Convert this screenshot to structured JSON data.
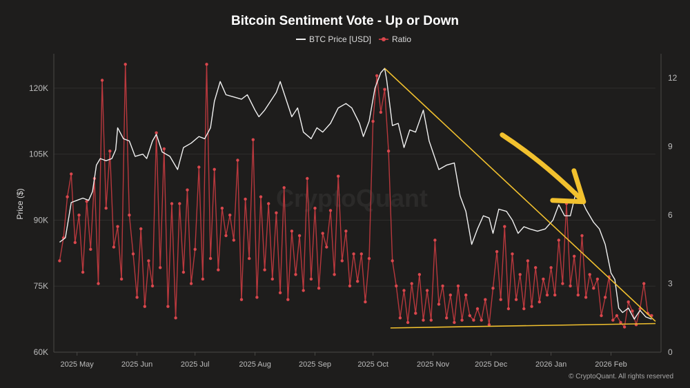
{
  "title": "Bitcoin Sentiment Vote - Up or Down",
  "credit": "© CryptoQuant. All rights reserved",
  "watermark": "CryptoQuant",
  "colors": {
    "background": "#1e1d1c",
    "price_line": "#f2f2f2",
    "ratio_line": "#b8383d",
    "ratio_marker": "#d9474d",
    "trendline": "#f2c12e",
    "grid": "#2f2e2c",
    "axis_text": "#bdbdbd"
  },
  "chart_data": {
    "type": "line",
    "title": "Bitcoin Sentiment Vote - Up or Down",
    "legend": {
      "placement": "top-center",
      "entries": [
        "BTC Price [USD]",
        "Ratio"
      ]
    },
    "grid": true,
    "x": {
      "type": "date",
      "range": [
        "2025-04-19",
        "2026-02-24"
      ],
      "tick_labels": [
        "2025 May",
        "2025 Jun",
        "2025 Jul",
        "2025 Aug",
        "2025 Sep",
        "2025 Oct",
        "2025 Nov",
        "2025 Dec",
        "2026 Jan",
        "2026 Feb"
      ],
      "tick_dates": [
        "2025-05-01",
        "2025-06-01",
        "2025-07-01",
        "2025-08-01",
        "2025-09-01",
        "2025-10-01",
        "2025-11-01",
        "2025-12-01",
        "2026-01-01",
        "2026-02-01"
      ]
    },
    "y_left": {
      "label": "Price ($)",
      "range": [
        60000,
        127500
      ],
      "ticks": [
        60000,
        75000,
        90000,
        105000,
        120000
      ],
      "tick_labels": [
        "60K",
        "75K",
        "90K",
        "105K",
        "120K"
      ]
    },
    "y_right": {
      "label": "",
      "range": [
        0,
        13
      ],
      "ticks": [
        0,
        3,
        6,
        9,
        12
      ],
      "tick_labels": [
        "0",
        "3",
        "6",
        "9",
        "12"
      ]
    },
    "series": [
      {
        "name": "BTC Price [USD]",
        "axis": "left",
        "points": [
          [
            "2025-04-22",
            85000
          ],
          [
            "2025-04-25",
            86000
          ],
          [
            "2025-04-28",
            94000
          ],
          [
            "2025-05-01",
            94500
          ],
          [
            "2025-05-04",
            95000
          ],
          [
            "2025-05-07",
            94500
          ],
          [
            "2025-05-09",
            96500
          ],
          [
            "2025-05-11",
            102500
          ],
          [
            "2025-05-13",
            104000
          ],
          [
            "2025-05-16",
            103500
          ],
          [
            "2025-05-19",
            104000
          ],
          [
            "2025-05-21",
            106000
          ],
          [
            "2025-05-22",
            111000
          ],
          [
            "2025-05-25",
            108500
          ],
          [
            "2025-05-28",
            108000
          ],
          [
            "2025-05-31",
            104500
          ],
          [
            "2025-06-04",
            105000
          ],
          [
            "2025-06-06",
            104000
          ],
          [
            "2025-06-09",
            108000
          ],
          [
            "2025-06-11",
            109500
          ],
          [
            "2025-06-14",
            105500
          ],
          [
            "2025-06-18",
            104500
          ],
          [
            "2025-06-22",
            101500
          ],
          [
            "2025-06-25",
            106500
          ],
          [
            "2025-06-29",
            107500
          ],
          [
            "2025-07-03",
            109000
          ],
          [
            "2025-07-06",
            108500
          ],
          [
            "2025-07-09",
            111000
          ],
          [
            "2025-07-11",
            117000
          ],
          [
            "2025-07-14",
            121500
          ],
          [
            "2025-07-17",
            118500
          ],
          [
            "2025-07-21",
            118000
          ],
          [
            "2025-07-25",
            117500
          ],
          [
            "2025-07-28",
            118500
          ],
          [
            "2025-08-01",
            115000
          ],
          [
            "2025-08-03",
            113500
          ],
          [
            "2025-08-06",
            115000
          ],
          [
            "2025-08-09",
            117000
          ],
          [
            "2025-08-12",
            119000
          ],
          [
            "2025-08-14",
            121500
          ],
          [
            "2025-08-17",
            117500
          ],
          [
            "2025-08-20",
            113500
          ],
          [
            "2025-08-23",
            115500
          ],
          [
            "2025-08-26",
            110000
          ],
          [
            "2025-08-30",
            108500
          ],
          [
            "2025-09-02",
            111000
          ],
          [
            "2025-09-05",
            110000
          ],
          [
            "2025-09-09",
            112000
          ],
          [
            "2025-09-13",
            115500
          ],
          [
            "2025-09-17",
            116500
          ],
          [
            "2025-09-20",
            115500
          ],
          [
            "2025-09-24",
            112000
          ],
          [
            "2025-09-26",
            109000
          ],
          [
            "2025-09-29",
            112500
          ],
          [
            "2025-10-02",
            120000
          ],
          [
            "2025-10-05",
            123500
          ],
          [
            "2025-10-07",
            124500
          ],
          [
            "2025-10-08",
            122000
          ],
          [
            "2025-10-11",
            111500
          ],
          [
            "2025-10-14",
            112000
          ],
          [
            "2025-10-17",
            106500
          ],
          [
            "2025-10-20",
            110500
          ],
          [
            "2025-10-23",
            110000
          ],
          [
            "2025-10-27",
            115000
          ],
          [
            "2025-10-30",
            108000
          ],
          [
            "2025-11-04",
            101500
          ],
          [
            "2025-11-08",
            102500
          ],
          [
            "2025-11-12",
            103000
          ],
          [
            "2025-11-15",
            95500
          ],
          [
            "2025-11-18",
            92000
          ],
          [
            "2025-11-21",
            84500
          ],
          [
            "2025-11-24",
            88000
          ],
          [
            "2025-11-27",
            91000
          ],
          [
            "2025-11-30",
            90500
          ],
          [
            "2025-12-02",
            87000
          ],
          [
            "2025-12-05",
            92500
          ],
          [
            "2025-12-09",
            92000
          ],
          [
            "2025-12-12",
            90000
          ],
          [
            "2025-12-15",
            87000
          ],
          [
            "2025-12-18",
            88500
          ],
          [
            "2025-12-21",
            88000
          ],
          [
            "2025-12-25",
            87500
          ],
          [
            "2025-12-29",
            88000
          ],
          [
            "2026-01-02",
            90000
          ],
          [
            "2026-01-05",
            93500
          ],
          [
            "2026-01-08",
            91000
          ],
          [
            "2026-01-11",
            91000
          ],
          [
            "2026-01-14",
            96500
          ],
          [
            "2026-01-16",
            95500
          ],
          [
            "2026-01-19",
            92500
          ],
          [
            "2026-01-23",
            89500
          ],
          [
            "2026-01-26",
            88000
          ],
          [
            "2026-01-29",
            84500
          ],
          [
            "2026-02-01",
            78000
          ],
          [
            "2026-02-03",
            76500
          ],
          [
            "2026-02-05",
            70000
          ],
          [
            "2026-02-07",
            69000
          ],
          [
            "2026-02-10",
            70000
          ],
          [
            "2026-02-13",
            67500
          ],
          [
            "2026-02-16",
            69500
          ],
          [
            "2026-02-19",
            68000
          ],
          [
            "2026-02-22",
            67500
          ]
        ]
      },
      {
        "name": "Ratio",
        "axis": "right",
        "points": [
          [
            "2025-04-22",
            4.0
          ],
          [
            "2025-04-24",
            5.0
          ],
          [
            "2025-04-26",
            6.8
          ],
          [
            "2025-04-28",
            7.8
          ],
          [
            "2025-04-30",
            4.8
          ],
          [
            "2025-05-02",
            6.0
          ],
          [
            "2025-05-04",
            3.5
          ],
          [
            "2025-05-06",
            6.6
          ],
          [
            "2025-05-08",
            4.5
          ],
          [
            "2025-05-10",
            7.6
          ],
          [
            "2025-05-12",
            3.0
          ],
          [
            "2025-05-14",
            11.9
          ],
          [
            "2025-05-16",
            6.3
          ],
          [
            "2025-05-18",
            8.8
          ],
          [
            "2025-05-20",
            4.6
          ],
          [
            "2025-05-22",
            5.5
          ],
          [
            "2025-05-24",
            3.2
          ],
          [
            "2025-05-26",
            12.6
          ],
          [
            "2025-05-28",
            6.0
          ],
          [
            "2025-05-30",
            4.3
          ],
          [
            "2025-06-01",
            2.4
          ],
          [
            "2025-06-03",
            5.4
          ],
          [
            "2025-06-05",
            2.0
          ],
          [
            "2025-06-07",
            4.0
          ],
          [
            "2025-06-09",
            2.9
          ],
          [
            "2025-06-11",
            9.6
          ],
          [
            "2025-06-13",
            3.7
          ],
          [
            "2025-06-15",
            8.9
          ],
          [
            "2025-06-17",
            2.0
          ],
          [
            "2025-06-19",
            6.5
          ],
          [
            "2025-06-21",
            1.5
          ],
          [
            "2025-06-23",
            6.5
          ],
          [
            "2025-06-25",
            3.5
          ],
          [
            "2025-06-27",
            7.1
          ],
          [
            "2025-06-29",
            3.0
          ],
          [
            "2025-07-01",
            4.5
          ],
          [
            "2025-07-03",
            8.1
          ],
          [
            "2025-07-05",
            3.2
          ],
          [
            "2025-07-07",
            12.6
          ],
          [
            "2025-07-09",
            4.1
          ],
          [
            "2025-07-11",
            8.0
          ],
          [
            "2025-07-13",
            3.6
          ],
          [
            "2025-07-15",
            6.3
          ],
          [
            "2025-07-17",
            5.1
          ],
          [
            "2025-07-19",
            6.0
          ],
          [
            "2025-07-21",
            4.9
          ],
          [
            "2025-07-23",
            8.4
          ],
          [
            "2025-07-25",
            2.3
          ],
          [
            "2025-07-27",
            6.7
          ],
          [
            "2025-07-29",
            4.1
          ],
          [
            "2025-07-31",
            9.3
          ],
          [
            "2025-08-02",
            2.4
          ],
          [
            "2025-08-04",
            6.8
          ],
          [
            "2025-08-06",
            3.6
          ],
          [
            "2025-08-08",
            6.5
          ],
          [
            "2025-08-10",
            3.2
          ],
          [
            "2025-08-12",
            6.1
          ],
          [
            "2025-08-14",
            2.6
          ],
          [
            "2025-08-16",
            7.2
          ],
          [
            "2025-08-18",
            2.3
          ],
          [
            "2025-08-20",
            5.3
          ],
          [
            "2025-08-22",
            3.4
          ],
          [
            "2025-08-24",
            5.1
          ],
          [
            "2025-08-26",
            2.7
          ],
          [
            "2025-08-28",
            7.6
          ],
          [
            "2025-08-30",
            3.2
          ],
          [
            "2025-09-01",
            6.3
          ],
          [
            "2025-09-03",
            2.8
          ],
          [
            "2025-09-05",
            5.2
          ],
          [
            "2025-09-07",
            4.6
          ],
          [
            "2025-09-09",
            6.2
          ],
          [
            "2025-09-11",
            3.4
          ],
          [
            "2025-09-13",
            7.7
          ],
          [
            "2025-09-15",
            4.0
          ],
          [
            "2025-09-17",
            5.3
          ],
          [
            "2025-09-19",
            2.9
          ],
          [
            "2025-09-21",
            4.3
          ],
          [
            "2025-09-23",
            3.1
          ],
          [
            "2025-09-25",
            4.3
          ],
          [
            "2025-09-27",
            2.2
          ],
          [
            "2025-09-29",
            4.1
          ],
          [
            "2025-10-01",
            10.1
          ],
          [
            "2025-10-03",
            12.1
          ],
          [
            "2025-10-05",
            10.5
          ],
          [
            "2025-10-07",
            11.5
          ],
          [
            "2025-10-09",
            8.8
          ],
          [
            "2025-10-11",
            4.0
          ],
          [
            "2025-10-13",
            2.9
          ],
          [
            "2025-10-15",
            1.5
          ],
          [
            "2025-10-17",
            2.7
          ],
          [
            "2025-10-19",
            1.3
          ],
          [
            "2025-10-21",
            3.0
          ],
          [
            "2025-10-23",
            1.7
          ],
          [
            "2025-10-25",
            3.4
          ],
          [
            "2025-10-27",
            1.4
          ],
          [
            "2025-10-29",
            2.7
          ],
          [
            "2025-10-31",
            1.4
          ],
          [
            "2025-11-02",
            4.9
          ],
          [
            "2025-11-04",
            2.1
          ],
          [
            "2025-11-06",
            2.9
          ],
          [
            "2025-11-08",
            1.5
          ],
          [
            "2025-11-10",
            2.5
          ],
          [
            "2025-11-12",
            1.3
          ],
          [
            "2025-11-14",
            2.9
          ],
          [
            "2025-11-16",
            1.4
          ],
          [
            "2025-11-18",
            2.5
          ],
          [
            "2025-11-20",
            1.6
          ],
          [
            "2025-11-22",
            1.4
          ],
          [
            "2025-11-24",
            1.9
          ],
          [
            "2025-11-26",
            1.4
          ],
          [
            "2025-11-28",
            2.3
          ],
          [
            "2025-11-30",
            1.2
          ],
          [
            "2025-12-02",
            2.8
          ],
          [
            "2025-12-04",
            4.4
          ],
          [
            "2025-12-06",
            2.3
          ],
          [
            "2025-12-08",
            5.5
          ],
          [
            "2025-12-10",
            1.9
          ],
          [
            "2025-12-12",
            4.3
          ],
          [
            "2025-12-14",
            2.3
          ],
          [
            "2025-12-16",
            3.4
          ],
          [
            "2025-12-18",
            1.9
          ],
          [
            "2025-12-20",
            4.0
          ],
          [
            "2025-12-22",
            2.0
          ],
          [
            "2025-12-24",
            3.7
          ],
          [
            "2025-12-26",
            2.2
          ],
          [
            "2025-12-28",
            3.2
          ],
          [
            "2025-12-30",
            2.5
          ],
          [
            "2026-01-01",
            3.7
          ],
          [
            "2026-01-03",
            2.5
          ],
          [
            "2026-01-05",
            4.9
          ],
          [
            "2026-01-07",
            3.0
          ],
          [
            "2026-01-09",
            6.5
          ],
          [
            "2026-01-11",
            2.9
          ],
          [
            "2026-01-13",
            4.2
          ],
          [
            "2026-01-15",
            2.5
          ],
          [
            "2026-01-17",
            5.1
          ],
          [
            "2026-01-19",
            2.4
          ],
          [
            "2026-01-21",
            3.4
          ],
          [
            "2026-01-23",
            2.8
          ],
          [
            "2026-01-25",
            3.2
          ],
          [
            "2026-01-27",
            1.6
          ],
          [
            "2026-01-29",
            2.4
          ],
          [
            "2026-01-31",
            3.3
          ],
          [
            "2026-02-02",
            1.4
          ],
          [
            "2026-02-04",
            1.6
          ],
          [
            "2026-02-06",
            1.3
          ],
          [
            "2026-02-08",
            1.1
          ],
          [
            "2026-02-10",
            2.2
          ],
          [
            "2026-02-12",
            1.8
          ],
          [
            "2026-02-14",
            1.2
          ],
          [
            "2026-02-16",
            1.9
          ],
          [
            "2026-02-18",
            3.0
          ],
          [
            "2026-02-20",
            1.7
          ],
          [
            "2026-02-22",
            1.6
          ]
        ]
      }
    ],
    "annotations": [
      {
        "type": "trendline",
        "axis": "left",
        "from": [
          "2025-10-07",
          124500
        ],
        "to": [
          "2026-02-24",
          67000
        ]
      },
      {
        "type": "trendline",
        "axis": "left",
        "from": [
          "2025-10-10",
          65500
        ],
        "to": [
          "2026-02-24",
          66500
        ]
      },
      {
        "type": "arrow",
        "direction": "down-right",
        "target": [
          "2026-01-10",
          94500
        ]
      }
    ]
  }
}
